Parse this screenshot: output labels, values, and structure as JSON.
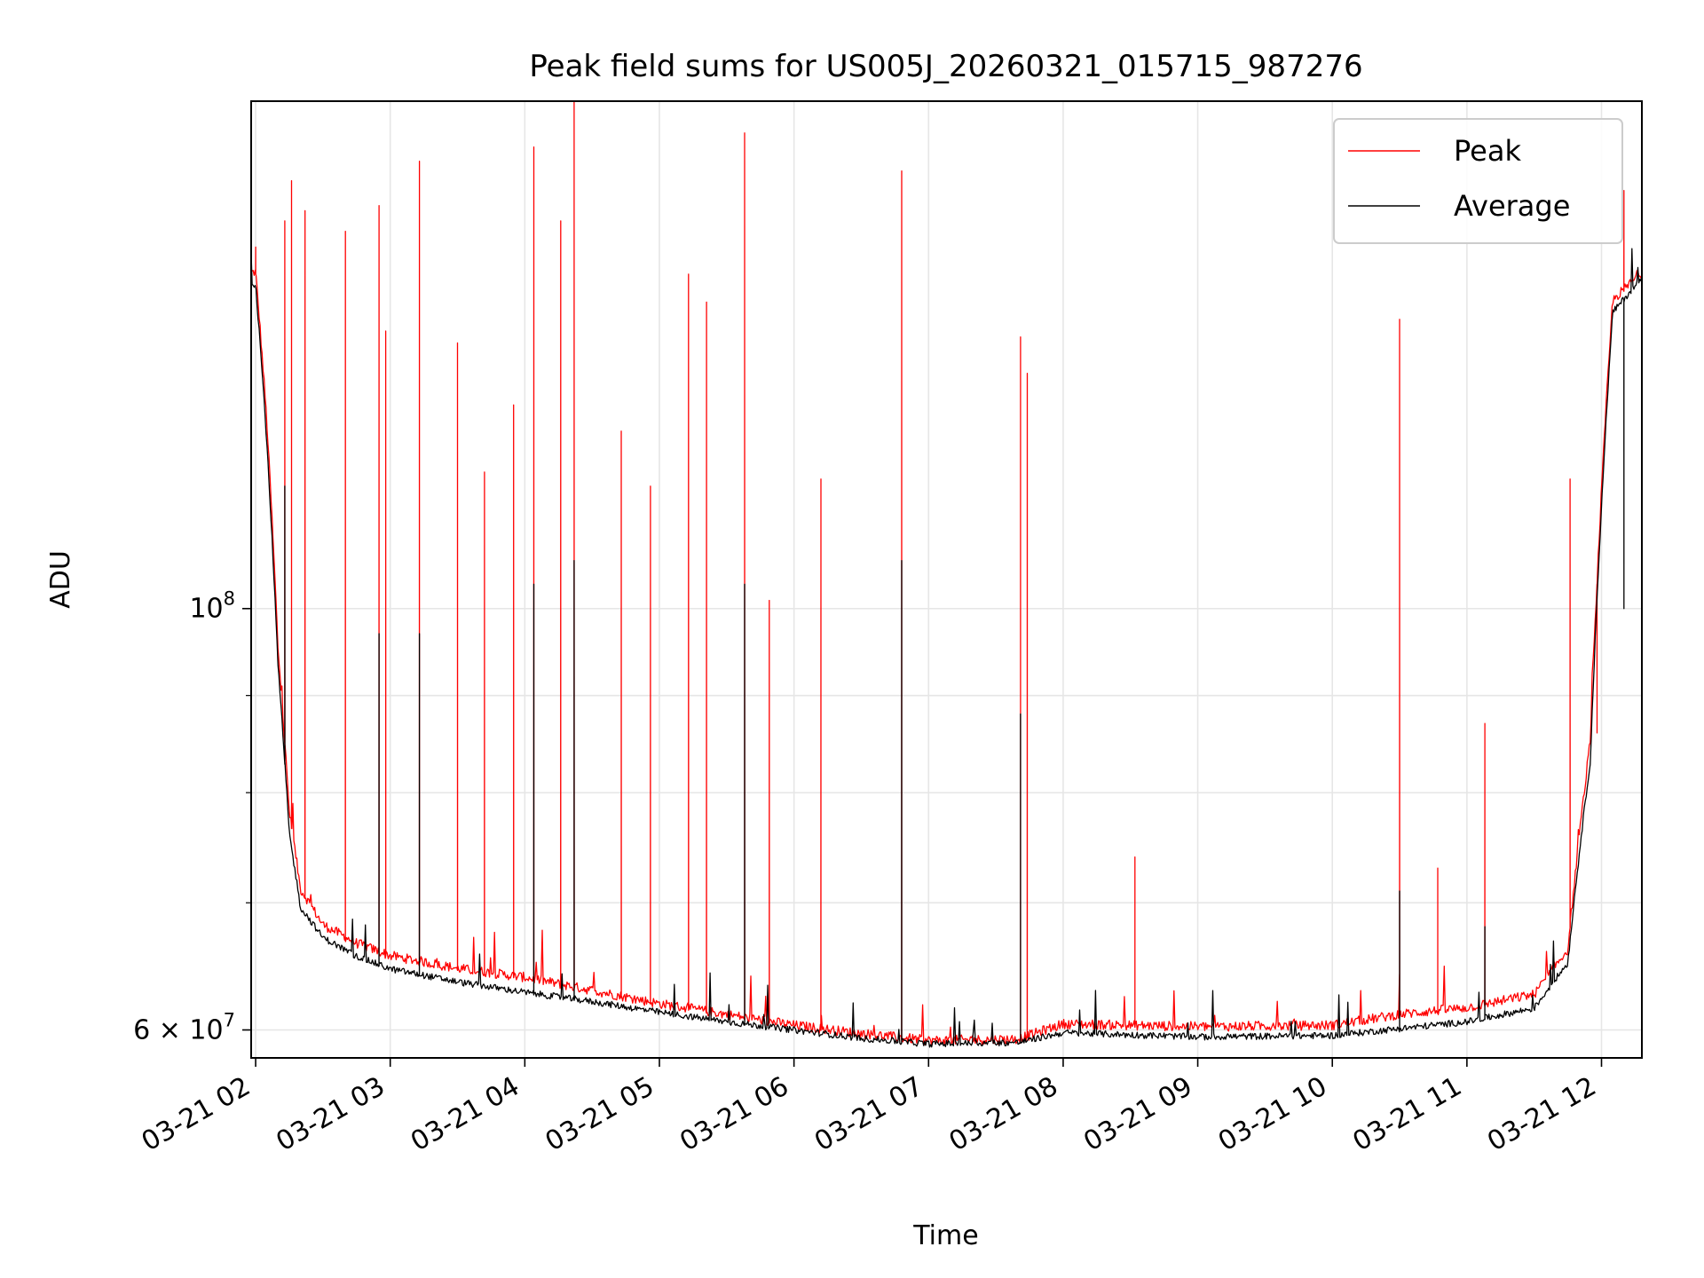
{
  "chart_data": {
    "type": "line",
    "title": "Peak field sums for US005J_20260321_015715_987276",
    "xlabel": "Time",
    "ylabel": "ADU",
    "yscale": "log",
    "xlim": [
      "2026-03-21T01:58",
      "2026-03-21T12:18"
    ],
    "ylim": [
      58000000,
      185000000
    ],
    "grid": true,
    "legend_position": "upper right",
    "x_ticks": [
      "03-21 02",
      "03-21 03",
      "03-21 04",
      "03-21 05",
      "03-21 06",
      "03-21 07",
      "03-21 08",
      "03-21 09",
      "03-21 10",
      "03-21 11",
      "03-21 12"
    ],
    "y_major_ticks": [
      {
        "value": 60000000,
        "label_base": "6 × 10",
        "label_exp": "7"
      },
      {
        "value": 100000000,
        "label_base": "10",
        "label_exp": "8"
      }
    ],
    "y_minor_ticks": [
      70000000,
      80000000,
      90000000
    ],
    "series": [
      {
        "name": "Peak",
        "color": "#ff0000",
        "baseline": [
          [
            "2026-03-21T01:58",
            150000000
          ],
          [
            "2026-03-21T02:00",
            150000000
          ],
          [
            "2026-03-21T02:05",
            125000000
          ],
          [
            "2026-03-21T02:10",
            95000000
          ],
          [
            "2026-03-21T02:15",
            78000000
          ],
          [
            "2026-03-21T02:20",
            71000000
          ],
          [
            "2026-03-21T02:30",
            68000000
          ],
          [
            "2026-03-21T02:45",
            66500000
          ],
          [
            "2026-03-21T03:00",
            65500000
          ],
          [
            "2026-03-21T03:30",
            64500000
          ],
          [
            "2026-03-21T04:00",
            63800000
          ],
          [
            "2026-03-21T04:30",
            62800000
          ],
          [
            "2026-03-21T05:00",
            61800000
          ],
          [
            "2026-03-21T05:30",
            61000000
          ],
          [
            "2026-03-21T06:00",
            60200000
          ],
          [
            "2026-03-21T06:30",
            59600000
          ],
          [
            "2026-03-21T07:00",
            59100000
          ],
          [
            "2026-03-21T07:40",
            59200000
          ],
          [
            "2026-03-21T08:00",
            60300000
          ],
          [
            "2026-03-21T09:00",
            60100000
          ],
          [
            "2026-03-21T10:00",
            60200000
          ],
          [
            "2026-03-21T10:30",
            61000000
          ],
          [
            "2026-03-21T11:00",
            61500000
          ],
          [
            "2026-03-21T11:30",
            62500000
          ],
          [
            "2026-03-21T11:45",
            66000000
          ],
          [
            "2026-03-21T11:55",
            85000000
          ],
          [
            "2026-03-21T12:05",
            145000000
          ],
          [
            "2026-03-21T12:18",
            150000000
          ]
        ],
        "spikes": [
          [
            "2026-03-21T02:00",
            155000000
          ],
          [
            "2026-03-21T02:13",
            160000000
          ],
          [
            "2026-03-21T02:16",
            168000000
          ],
          [
            "2026-03-21T02:22",
            162000000
          ],
          [
            "2026-03-21T02:40",
            158000000
          ],
          [
            "2026-03-21T02:55",
            163000000
          ],
          [
            "2026-03-21T02:58",
            140000000
          ],
          [
            "2026-03-21T03:13",
            172000000
          ],
          [
            "2026-03-21T03:30",
            138000000
          ],
          [
            "2026-03-21T03:42",
            118000000
          ],
          [
            "2026-03-21T03:55",
            128000000
          ],
          [
            "2026-03-21T04:04",
            175000000
          ],
          [
            "2026-03-21T04:16",
            160000000
          ],
          [
            "2026-03-21T04:22",
            185000000
          ],
          [
            "2026-03-21T04:43",
            124000000
          ],
          [
            "2026-03-21T04:56",
            116000000
          ],
          [
            "2026-03-21T05:13",
            150000000
          ],
          [
            "2026-03-21T05:21",
            145000000
          ],
          [
            "2026-03-21T05:38",
            178000000
          ],
          [
            "2026-03-21T05:49",
            101000000
          ],
          [
            "2026-03-21T06:12",
            117000000
          ],
          [
            "2026-03-21T06:48",
            170000000
          ],
          [
            "2026-03-21T07:41",
            139000000
          ],
          [
            "2026-03-21T07:44",
            133000000
          ],
          [
            "2026-03-21T08:32",
            74000000
          ],
          [
            "2026-03-21T10:30",
            142000000
          ],
          [
            "2026-03-21T10:47",
            73000000
          ],
          [
            "2026-03-21T11:08",
            87000000
          ],
          [
            "2026-03-21T11:46",
            117000000
          ],
          [
            "2026-03-21T11:58",
            86000000
          ],
          [
            "2026-03-21T12:10",
            166000000
          ]
        ]
      },
      {
        "name": "Average",
        "color": "#000000",
        "baseline": [
          [
            "2026-03-21T01:58",
            148000000
          ],
          [
            "2026-03-21T02:00",
            148000000
          ],
          [
            "2026-03-21T02:05",
            122000000
          ],
          [
            "2026-03-21T02:10",
            93000000
          ],
          [
            "2026-03-21T02:15",
            76000000
          ],
          [
            "2026-03-21T02:20",
            69500000
          ],
          [
            "2026-03-21T02:30",
            67000000
          ],
          [
            "2026-03-21T02:45",
            65500000
          ],
          [
            "2026-03-21T03:00",
            64500000
          ],
          [
            "2026-03-21T03:30",
            63500000
          ],
          [
            "2026-03-21T04:00",
            62700000
          ],
          [
            "2026-03-21T04:30",
            62000000
          ],
          [
            "2026-03-21T05:00",
            61200000
          ],
          [
            "2026-03-21T05:30",
            60500000
          ],
          [
            "2026-03-21T06:00",
            59900000
          ],
          [
            "2026-03-21T06:30",
            59300000
          ],
          [
            "2026-03-21T07:00",
            58900000
          ],
          [
            "2026-03-21T07:40",
            59000000
          ],
          [
            "2026-03-21T08:00",
            59700000
          ],
          [
            "2026-03-21T09:00",
            59400000
          ],
          [
            "2026-03-21T10:00",
            59500000
          ],
          [
            "2026-03-21T10:30",
            60000000
          ],
          [
            "2026-03-21T11:00",
            60500000
          ],
          [
            "2026-03-21T11:30",
            61500000
          ],
          [
            "2026-03-21T11:45",
            65000000
          ],
          [
            "2026-03-21T11:55",
            83000000
          ],
          [
            "2026-03-21T12:05",
            143000000
          ],
          [
            "2026-03-21T12:18",
            149000000
          ]
        ],
        "spikes": [
          [
            "2026-03-21T02:13",
            116000000
          ],
          [
            "2026-03-21T02:55",
            97000000
          ],
          [
            "2026-03-21T03:13",
            97000000
          ],
          [
            "2026-03-21T04:04",
            103000000
          ],
          [
            "2026-03-21T04:22",
            106000000
          ],
          [
            "2026-03-21T05:38",
            103000000
          ],
          [
            "2026-03-21T06:48",
            106000000
          ],
          [
            "2026-03-21T07:41",
            88000000
          ],
          [
            "2026-03-21T10:30",
            71000000
          ],
          [
            "2026-03-21T11:08",
            68000000
          ],
          [
            "2026-03-21T12:10",
            100000000
          ]
        ]
      }
    ]
  }
}
